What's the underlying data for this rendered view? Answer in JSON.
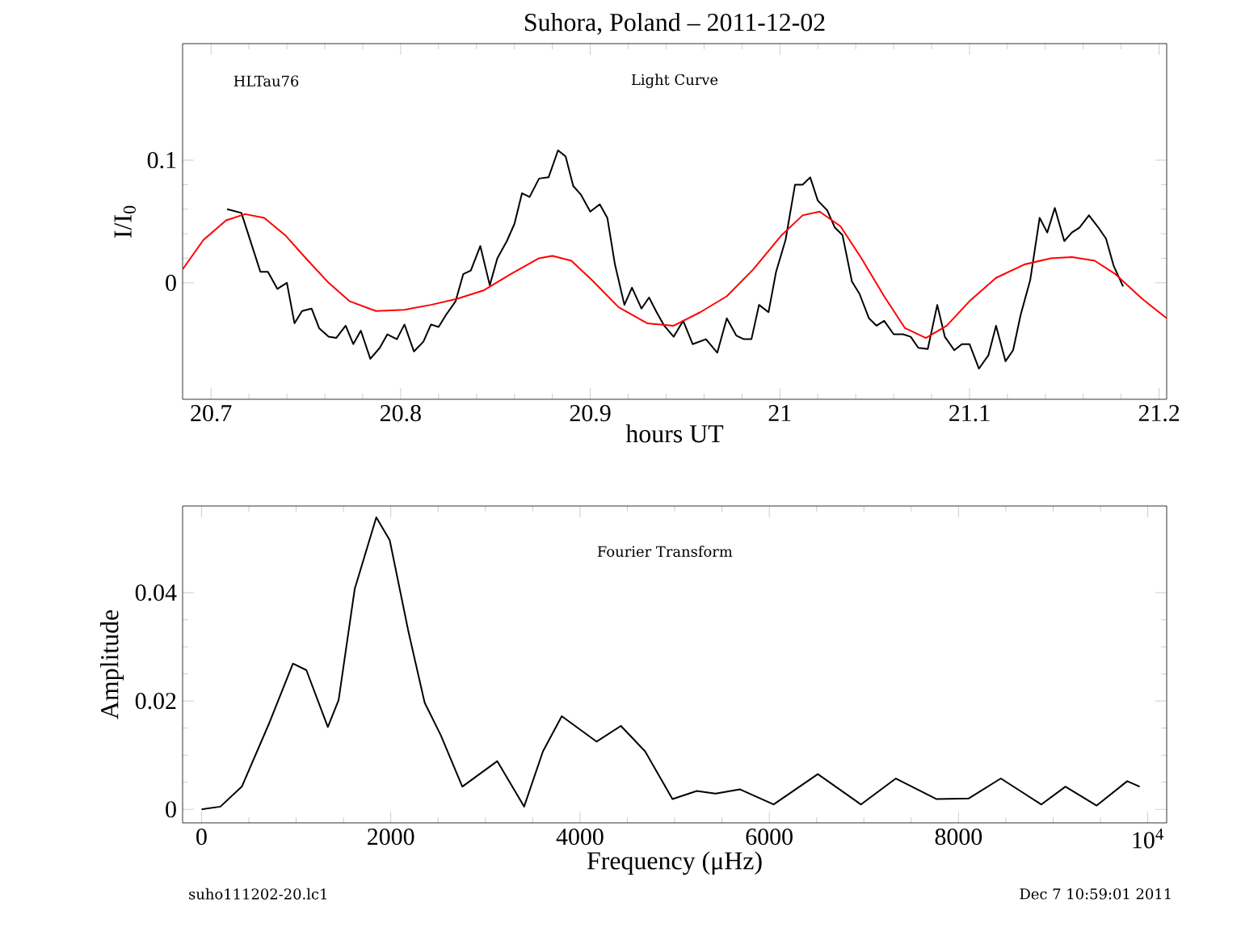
{
  "chart_data": [
    {
      "type": "line",
      "title": "Suhora, Poland – 2011-12-02",
      "xlabel": "hours UT",
      "ylabel": "I/I$_{0}$",
      "annotations": [
        "HLTau76",
        "Light Curve"
      ],
      "xlim": [
        20.685,
        21.204
      ],
      "ylim": [
        -0.095,
        0.195
      ],
      "xticks": [
        20.7,
        20.8,
        20.9,
        21,
        21.1,
        21.2
      ],
      "yticks": [
        0,
        0.1
      ],
      "series": [
        {
          "color": "#000000",
          "x": [
            20.7085,
            20.716,
            20.726,
            20.73,
            20.735,
            20.74,
            20.744,
            20.748,
            20.753,
            20.757,
            20.762,
            20.766,
            20.771,
            20.775,
            20.779,
            20.784,
            20.789,
            20.793,
            20.798,
            20.802,
            20.807,
            20.812,
            20.816,
            20.82,
            20.824,
            20.829,
            20.833,
            20.837,
            20.842,
            20.847,
            20.851,
            20.856,
            20.86,
            20.864,
            20.868,
            20.873,
            20.878,
            20.883,
            20.887,
            20.891,
            20.895,
            20.9,
            20.905,
            20.909,
            20.913,
            20.918,
            20.922,
            20.927,
            20.931,
            20.935,
            20.939,
            20.944,
            20.949,
            20.954,
            20.961,
            20.967,
            20.972,
            20.977,
            20.981,
            20.985,
            20.989,
            20.994,
            20.998,
            21.003,
            21.008,
            21.012,
            21.016,
            21.02,
            21.025,
            21.029,
            21.033,
            21.038,
            21.042,
            21.047,
            21.051,
            21.055,
            21.06,
            21.065,
            21.069,
            21.073,
            21.078,
            21.083,
            21.087,
            21.092,
            21.096,
            21.1,
            21.105,
            21.11,
            21.114,
            21.119,
            21.123,
            21.127,
            21.132,
            21.137,
            21.141,
            21.145,
            21.15,
            21.154,
            21.158,
            21.163,
            21.168,
            21.172,
            21.176,
            21.181
          ],
          "values": [
            0.06,
            0.057,
            0.009,
            0.009,
            -0.005,
            0.0,
            -0.033,
            -0.023,
            -0.021,
            -0.037,
            -0.044,
            -0.045,
            -0.035,
            -0.05,
            -0.039,
            -0.062,
            -0.053,
            -0.042,
            -0.046,
            -0.034,
            -0.056,
            -0.048,
            -0.034,
            -0.036,
            -0.026,
            -0.015,
            0.007,
            0.01,
            0.03,
            -0.002,
            0.02,
            0.034,
            0.048,
            0.073,
            0.07,
            0.085,
            0.086,
            0.108,
            0.103,
            0.079,
            0.072,
            0.058,
            0.064,
            0.053,
            0.015,
            -0.018,
            -0.004,
            -0.021,
            -0.012,
            -0.024,
            -0.035,
            -0.044,
            -0.031,
            -0.05,
            -0.046,
            -0.057,
            -0.029,
            -0.043,
            -0.046,
            -0.046,
            -0.018,
            -0.024,
            0.009,
            0.035,
            0.08,
            0.08,
            0.086,
            0.067,
            0.059,
            0.045,
            0.039,
            0.001,
            -0.009,
            -0.029,
            -0.035,
            -0.031,
            -0.042,
            -0.042,
            -0.044,
            -0.053,
            -0.054,
            -0.018,
            -0.044,
            -0.055,
            -0.05,
            -0.05,
            -0.07,
            -0.059,
            -0.035,
            -0.064,
            -0.055,
            -0.026,
            0.002,
            0.053,
            0.041,
            0.061,
            0.034,
            0.041,
            0.045,
            0.055,
            0.045,
            0.036,
            0.014,
            -0.003
          ]
        },
        {
          "color": "#ff0000",
          "x": [
            20.685,
            20.696,
            20.708,
            20.718,
            20.728,
            20.739,
            20.75,
            20.762,
            20.773,
            20.787,
            20.802,
            20.816,
            20.83,
            20.844,
            20.858,
            20.873,
            20.88,
            20.89,
            20.901,
            20.915,
            20.93,
            20.944,
            20.958,
            20.972,
            20.986,
            21.001,
            21.012,
            21.021,
            21.032,
            21.043,
            21.055,
            21.066,
            21.077,
            21.088,
            21.1,
            21.114,
            21.129,
            21.143,
            21.154,
            21.166,
            21.177,
            21.191,
            21.204
          ],
          "values": [
            0.011,
            0.035,
            0.051,
            0.056,
            0.053,
            0.039,
            0.02,
            0.0,
            -0.015,
            -0.023,
            -0.022,
            -0.018,
            -0.013,
            -0.006,
            0.007,
            0.02,
            0.022,
            0.018,
            0.002,
            -0.02,
            -0.033,
            -0.035,
            -0.024,
            -0.011,
            0.011,
            0.039,
            0.055,
            0.058,
            0.046,
            0.02,
            -0.011,
            -0.037,
            -0.045,
            -0.035,
            -0.015,
            0.004,
            0.015,
            0.02,
            0.021,
            0.018,
            0.007,
            -0.013,
            -0.029
          ]
        }
      ]
    },
    {
      "type": "line",
      "xlabel": "Frequency (μHz)",
      "ylabel": "Amplitude",
      "annotations": [
        "Fourier Transform",
        "suho111202-20.lc1",
        "Dec  7 10:59:01 2011"
      ],
      "xlim": [
        -200,
        10200
      ],
      "ylim": [
        -0.0025,
        0.056
      ],
      "xticks": [
        0,
        2000,
        4000,
        6000,
        8000,
        {
          "value": 10000,
          "label": "10$^{4}$"
        }
      ],
      "yticks": [
        0,
        0.02,
        0.04
      ],
      "series": [
        {
          "color": "#000000",
          "x": [
            0,
            199,
            426,
            710,
            966,
            1108,
            1335,
            1449,
            1619,
            1847,
            1989,
            2188,
            2358,
            2528,
            2756,
            3125,
            3409,
            3608,
            3807,
            4176,
            4432,
            4688,
            4977,
            5234,
            5432,
            5688,
            6046,
            6513,
            6968,
            7338,
            7765,
            8106,
            8447,
            8874,
            9130,
            9460,
            9783,
            9915
          ],
          "values": [
            0.0,
            0.0005,
            0.0042,
            0.0157,
            0.0269,
            0.0257,
            0.0152,
            0.0202,
            0.0407,
            0.0539,
            0.0497,
            0.0327,
            0.0197,
            0.0137,
            0.0042,
            0.0089,
            0.0005,
            0.0107,
            0.0172,
            0.0125,
            0.0154,
            0.0107,
            0.0019,
            0.0034,
            0.0029,
            0.0037,
            0.0009,
            0.0065,
            0.0009,
            0.0057,
            0.0019,
            0.002,
            0.0057,
            0.0009,
            0.0042,
            0.0007,
            0.0052,
            0.0042
          ]
        }
      ]
    }
  ]
}
